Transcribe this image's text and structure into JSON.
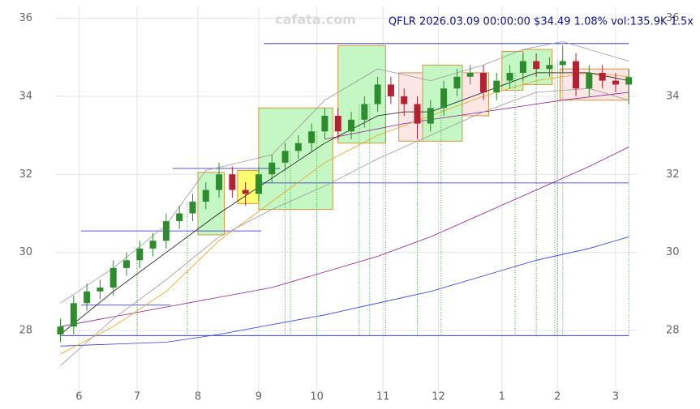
{
  "chart_data": {
    "type": "candlestick",
    "header": "QFLR 2026.03.09 00:00:00 $34.49 1.08% vol:135.9K 1.5x",
    "watermark": "cafata.com",
    "xlim": [
      -2,
      218
    ],
    "ylim": [
      26.3,
      36.3
    ],
    "yticks": [
      28,
      30,
      32,
      34,
      36
    ],
    "xticks": [
      {
        "value": 7,
        "label": "6"
      },
      {
        "value": 29,
        "label": "7"
      },
      {
        "value": 52,
        "label": "8"
      },
      {
        "value": 75,
        "label": "9"
      },
      {
        "value": 97,
        "label": "10"
      },
      {
        "value": 122,
        "label": "11"
      },
      {
        "value": 143,
        "label": "12"
      },
      {
        "value": 167,
        "label": "1"
      },
      {
        "value": 188,
        "label": "2"
      },
      {
        "value": 210,
        "label": "3"
      }
    ],
    "grid": true,
    "up_color": "#2e8b2e",
    "down_color": "#b22233",
    "x": [
      0,
      5,
      10,
      15,
      20,
      25,
      30,
      35,
      40,
      45,
      50,
      55,
      60,
      65,
      70,
      75,
      80,
      85,
      90,
      95,
      100,
      105,
      110,
      115,
      120,
      125,
      130,
      135,
      140,
      145,
      150,
      155,
      160,
      165,
      170,
      175,
      180,
      185,
      190,
      195,
      200,
      205,
      210,
      215
    ],
    "open": [
      27.9,
      28.1,
      28.7,
      29.0,
      29.1,
      29.6,
      29.8,
      30.1,
      30.3,
      30.8,
      31.0,
      31.3,
      31.6,
      32.0,
      31.6,
      31.5,
      32.0,
      32.3,
      32.6,
      32.8,
      33.1,
      33.5,
      33.1,
      33.4,
      33.8,
      34.3,
      34.0,
      33.8,
      33.3,
      33.7,
      34.2,
      34.5,
      34.6,
      34.1,
      34.4,
      34.6,
      34.9,
      34.7,
      34.8,
      34.9,
      34.2,
      34.6,
      34.4,
      34.3
    ],
    "high": [
      28.3,
      28.9,
      29.2,
      29.3,
      29.8,
      30.0,
      30.3,
      30.5,
      31.0,
      31.2,
      31.5,
      31.8,
      32.3,
      32.2,
      31.8,
      32.2,
      32.5,
      32.8,
      33.0,
      33.3,
      33.7,
      33.7,
      33.6,
      34.0,
      34.5,
      34.5,
      34.2,
      34.0,
      33.9,
      34.4,
      34.7,
      34.8,
      34.8,
      34.6,
      34.8,
      35.1,
      35.1,
      35.0,
      35.3,
      35.1,
      34.8,
      34.8,
      34.6,
      34.7
    ],
    "low": [
      27.7,
      27.9,
      28.5,
      28.8,
      28.9,
      29.4,
      29.6,
      29.9,
      30.1,
      30.6,
      30.8,
      31.1,
      31.4,
      31.4,
      31.2,
      31.3,
      31.8,
      32.1,
      32.4,
      32.6,
      32.9,
      32.9,
      32.9,
      33.2,
      33.6,
      33.8,
      33.5,
      32.9,
      33.1,
      33.5,
      34.0,
      34.3,
      33.9,
      33.9,
      34.2,
      34.4,
      34.5,
      34.5,
      34.6,
      34.0,
      34.0,
      34.2,
      34.1,
      33.8
    ],
    "close": [
      28.1,
      28.7,
      29.0,
      29.1,
      29.6,
      29.8,
      30.1,
      30.3,
      30.8,
      31.0,
      31.3,
      31.6,
      32.0,
      31.6,
      31.5,
      32.0,
      32.3,
      32.6,
      32.8,
      33.1,
      33.5,
      33.1,
      33.4,
      33.8,
      34.3,
      34.0,
      33.8,
      33.3,
      33.7,
      34.2,
      34.5,
      34.6,
      34.1,
      34.4,
      34.6,
      34.9,
      34.7,
      34.8,
      34.9,
      34.2,
      34.6,
      34.4,
      34.3,
      34.49
    ],
    "lines": [
      {
        "color": "#2b3bd6",
        "x": [
          0,
          40,
          60,
          100,
          120,
          140,
          160,
          180,
          200,
          215
        ],
        "values": [
          27.6,
          27.7,
          27.9,
          28.4,
          28.7,
          29.0,
          29.4,
          29.8,
          30.1,
          30.4
        ]
      },
      {
        "color": "#8a1f8a",
        "x": [
          0,
          40,
          80,
          100,
          120,
          140,
          160,
          180,
          200,
          215
        ],
        "values": [
          28.1,
          28.6,
          29.1,
          29.5,
          29.9,
          30.4,
          31.0,
          31.6,
          32.2,
          32.7
        ]
      },
      {
        "color": "#8a1f8a",
        "x": [
          100,
          130,
          160,
          190,
          215
        ],
        "values": [
          32.9,
          33.3,
          33.6,
          33.9,
          34.1
        ]
      },
      {
        "color": "#f0a020",
        "x": [
          0,
          20,
          40,
          60,
          80,
          100,
          120,
          140,
          160,
          180,
          200,
          215
        ],
        "values": [
          27.4,
          28.1,
          29.0,
          30.3,
          31.3,
          32.3,
          33.0,
          33.5,
          34.0,
          34.4,
          34.6,
          34.5
        ]
      },
      {
        "color": "#111111",
        "x": [
          0,
          20,
          40,
          60,
          80,
          100,
          120,
          130,
          140,
          160,
          180,
          200,
          215
        ],
        "values": [
          27.9,
          29.0,
          30.0,
          31.0,
          31.9,
          32.8,
          33.5,
          33.6,
          33.6,
          34.1,
          34.6,
          34.6,
          34.4
        ]
      },
      {
        "color": "#999999",
        "x": [
          0,
          20,
          40,
          55,
          80,
          100,
          120,
          140,
          160,
          175,
          190,
          215
        ],
        "values": [
          28.7,
          29.6,
          30.7,
          32.1,
          32.5,
          33.9,
          34.7,
          34.4,
          34.8,
          35.2,
          35.4,
          34.9
        ]
      },
      {
        "color": "#999999",
        "x": [
          0,
          20,
          40,
          60,
          80,
          100,
          120,
          140,
          160,
          180,
          200,
          215
        ],
        "values": [
          27.1,
          28.3,
          29.3,
          30.4,
          31.1,
          31.7,
          32.4,
          33.0,
          33.6,
          34.1,
          34.2,
          33.9
        ]
      }
    ],
    "levels": [
      {
        "value": 35.35,
        "x": [
          77,
          215
        ]
      },
      {
        "value": 32.15,
        "x": [
          42.5,
          83
        ]
      },
      {
        "value": 31.78,
        "x": [
          75,
          215
        ]
      },
      {
        "value": 30.55,
        "x": [
          7.8,
          76
        ]
      },
      {
        "value": 28.65,
        "x": [
          7.8,
          41.6
        ]
      },
      {
        "value": 27.87,
        "x": [
          0,
          215
        ]
      }
    ],
    "level_color": "#2222cc",
    "boxes": [
      {
        "x": [
          52,
          62
        ],
        "y": [
          30.45,
          32.05
        ],
        "fill": "#c4f7c4"
      },
      {
        "x": [
          75,
          103
        ],
        "y": [
          31.1,
          33.7
        ],
        "fill": "#c4f7c4"
      },
      {
        "x": [
          105,
          123
        ],
        "y": [
          32.8,
          35.3
        ],
        "fill": "#c4f7c4"
      },
      {
        "x": [
          137,
          152
        ],
        "y": [
          32.85,
          34.8
        ],
        "fill": "#c4f7c4"
      },
      {
        "x": [
          167,
          175
        ],
        "y": [
          34.15,
          35.15
        ],
        "fill": "#c4f7c4"
      },
      {
        "x": [
          175,
          186
        ],
        "y": [
          34.3,
          35.2
        ],
        "fill": "#c4f7c4"
      },
      {
        "x": [
          128,
          137
        ],
        "y": [
          32.85,
          34.6
        ],
        "fill": "#fde6e6"
      },
      {
        "x": [
          152,
          162
        ],
        "y": [
          33.5,
          34.6
        ],
        "fill": "#fde6e6"
      },
      {
        "x": [
          189,
          215
        ],
        "y": [
          33.9,
          34.7
        ],
        "fill": "#fde6e6"
      },
      {
        "x": [
          67,
          75
        ],
        "y": [
          31.25,
          32.1
        ],
        "fill": "#ffff70"
      }
    ],
    "box_stroke": "#d4963c",
    "signals": [
      29,
      48,
      85,
      87,
      97,
      113,
      117,
      123,
      135,
      144,
      172,
      180,
      187,
      188,
      190,
      215
    ],
    "signal_color": "#2e9b2e"
  }
}
